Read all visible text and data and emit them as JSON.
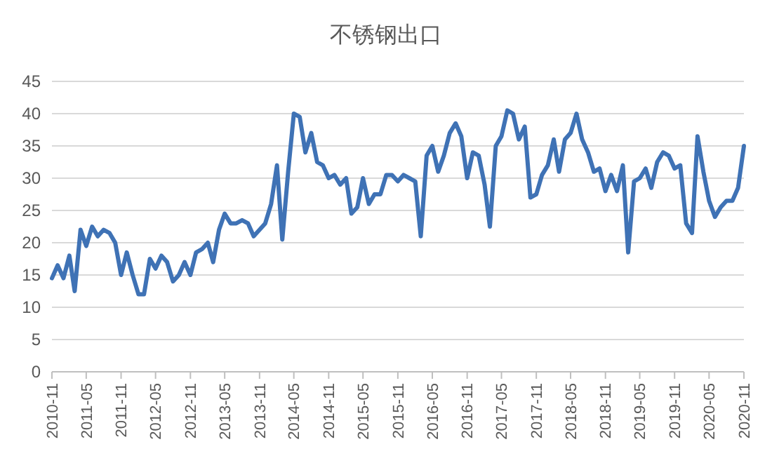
{
  "chart_data": {
    "type": "line",
    "title": "不锈钢出口",
    "x": [
      "2010-11",
      "2010-12",
      "2011-01",
      "2011-02",
      "2011-03",
      "2011-04",
      "2011-05",
      "2011-06",
      "2011-07",
      "2011-08",
      "2011-09",
      "2011-10",
      "2011-11",
      "2011-12",
      "2012-01",
      "2012-02",
      "2012-03",
      "2012-04",
      "2012-05",
      "2012-06",
      "2012-07",
      "2012-08",
      "2012-09",
      "2012-10",
      "2012-11",
      "2012-12",
      "2013-01",
      "2013-02",
      "2013-03",
      "2013-04",
      "2013-05",
      "2013-06",
      "2013-07",
      "2013-08",
      "2013-09",
      "2013-10",
      "2013-11",
      "2013-12",
      "2014-01",
      "2014-02",
      "2014-03",
      "2014-04",
      "2014-05",
      "2014-06",
      "2014-07",
      "2014-08",
      "2014-09",
      "2014-10",
      "2014-11",
      "2014-12",
      "2015-01",
      "2015-02",
      "2015-03",
      "2015-04",
      "2015-05",
      "2015-06",
      "2015-07",
      "2015-08",
      "2015-09",
      "2015-10",
      "2015-11",
      "2015-12",
      "2016-01",
      "2016-02",
      "2016-03",
      "2016-04",
      "2016-05",
      "2016-06",
      "2016-07",
      "2016-08",
      "2016-09",
      "2016-10",
      "2016-11",
      "2016-12",
      "2017-01",
      "2017-02",
      "2017-03",
      "2017-04",
      "2017-05",
      "2017-06",
      "2017-07",
      "2017-08",
      "2017-09",
      "2017-10",
      "2017-11",
      "2017-12",
      "2018-01",
      "2018-02",
      "2018-03",
      "2018-04",
      "2018-05",
      "2018-06",
      "2018-07",
      "2018-08",
      "2018-09",
      "2018-10",
      "2018-11",
      "2018-12",
      "2019-01",
      "2019-02",
      "2019-03",
      "2019-04",
      "2019-05",
      "2019-06",
      "2019-07",
      "2019-08",
      "2019-09",
      "2019-10",
      "2019-11",
      "2019-12",
      "2020-01",
      "2020-02",
      "2020-03",
      "2020-04",
      "2020-05",
      "2020-06",
      "2020-07",
      "2020-08",
      "2020-09",
      "2020-10",
      "2020-11"
    ],
    "series": [
      {
        "color": "#3f72b5",
        "values": [
          14.5,
          16.5,
          14.5,
          18,
          12.5,
          22,
          19.5,
          22.5,
          21,
          22,
          21.5,
          20,
          15,
          18.5,
          15,
          12,
          12,
          17.5,
          16,
          18,
          17,
          14,
          15,
          17,
          15,
          18.5,
          19,
          20,
          17,
          22,
          24.5,
          23,
          23,
          23.5,
          23,
          21,
          22,
          23,
          26,
          32,
          20.5,
          31,
          40,
          39.5,
          34,
          37,
          32.5,
          32,
          30,
          30.5,
          29,
          30,
          24.5,
          25.5,
          30,
          26,
          27.5,
          27.5,
          30.5,
          30.5,
          29.5,
          30.5,
          30,
          29.5,
          21,
          33.5,
          35,
          31,
          33.5,
          37,
          38.5,
          36.5,
          30,
          34,
          33.5,
          29,
          22.5,
          35,
          36.5,
          40.5,
          40,
          36,
          38,
          27,
          27.5,
          30.5,
          32,
          36,
          31,
          36,
          37,
          40,
          36,
          34,
          31,
          31.5,
          28,
          30.5,
          28,
          32,
          18.5,
          29.5,
          30,
          31.5,
          28.5,
          32.5,
          34,
          33.5,
          31.5,
          32,
          23,
          21.5,
          36.5,
          31,
          26.5,
          24,
          25.5,
          26.5,
          26.5,
          28.5,
          35
        ]
      }
    ],
    "xlim": [
      "2010-11",
      "2020-11"
    ],
    "xticks": [
      {
        "value": "2010-11",
        "label": "2010-11"
      },
      {
        "value": "2011-05",
        "label": "2011-05"
      },
      {
        "value": "2011-11",
        "label": "2011-11"
      },
      {
        "value": "2012-05",
        "label": "2012-05"
      },
      {
        "value": "2012-11",
        "label": "2012-11"
      },
      {
        "value": "2013-05",
        "label": "2013-05"
      },
      {
        "value": "2013-11",
        "label": "2013-11"
      },
      {
        "value": "2014-05",
        "label": "2014-05"
      },
      {
        "value": "2014-11",
        "label": "2014-11"
      },
      {
        "value": "2015-05",
        "label": "2015-05"
      },
      {
        "value": "2015-11",
        "label": "2015-11"
      },
      {
        "value": "2016-05",
        "label": "2016-05"
      },
      {
        "value": "2016-11",
        "label": "2016-11"
      },
      {
        "value": "2017-05",
        "label": "2017-05"
      },
      {
        "value": "2017-11",
        "label": "2017-11"
      },
      {
        "value": "2018-05",
        "label": "2018-05"
      },
      {
        "value": "2018-11",
        "label": "2018-11"
      },
      {
        "value": "2019-05",
        "label": "2019-05"
      },
      {
        "value": "2019-11",
        "label": "2019-11"
      },
      {
        "value": "2020-05",
        "label": "2020-05"
      },
      {
        "value": "2020-11",
        "label": "2020-11"
      }
    ],
    "ylim": [
      0,
      45
    ],
    "yticks": [
      0,
      5,
      10,
      15,
      20,
      25,
      30,
      35,
      40,
      45
    ],
    "grid": "y",
    "marker": "none",
    "line_style": "solid"
  }
}
